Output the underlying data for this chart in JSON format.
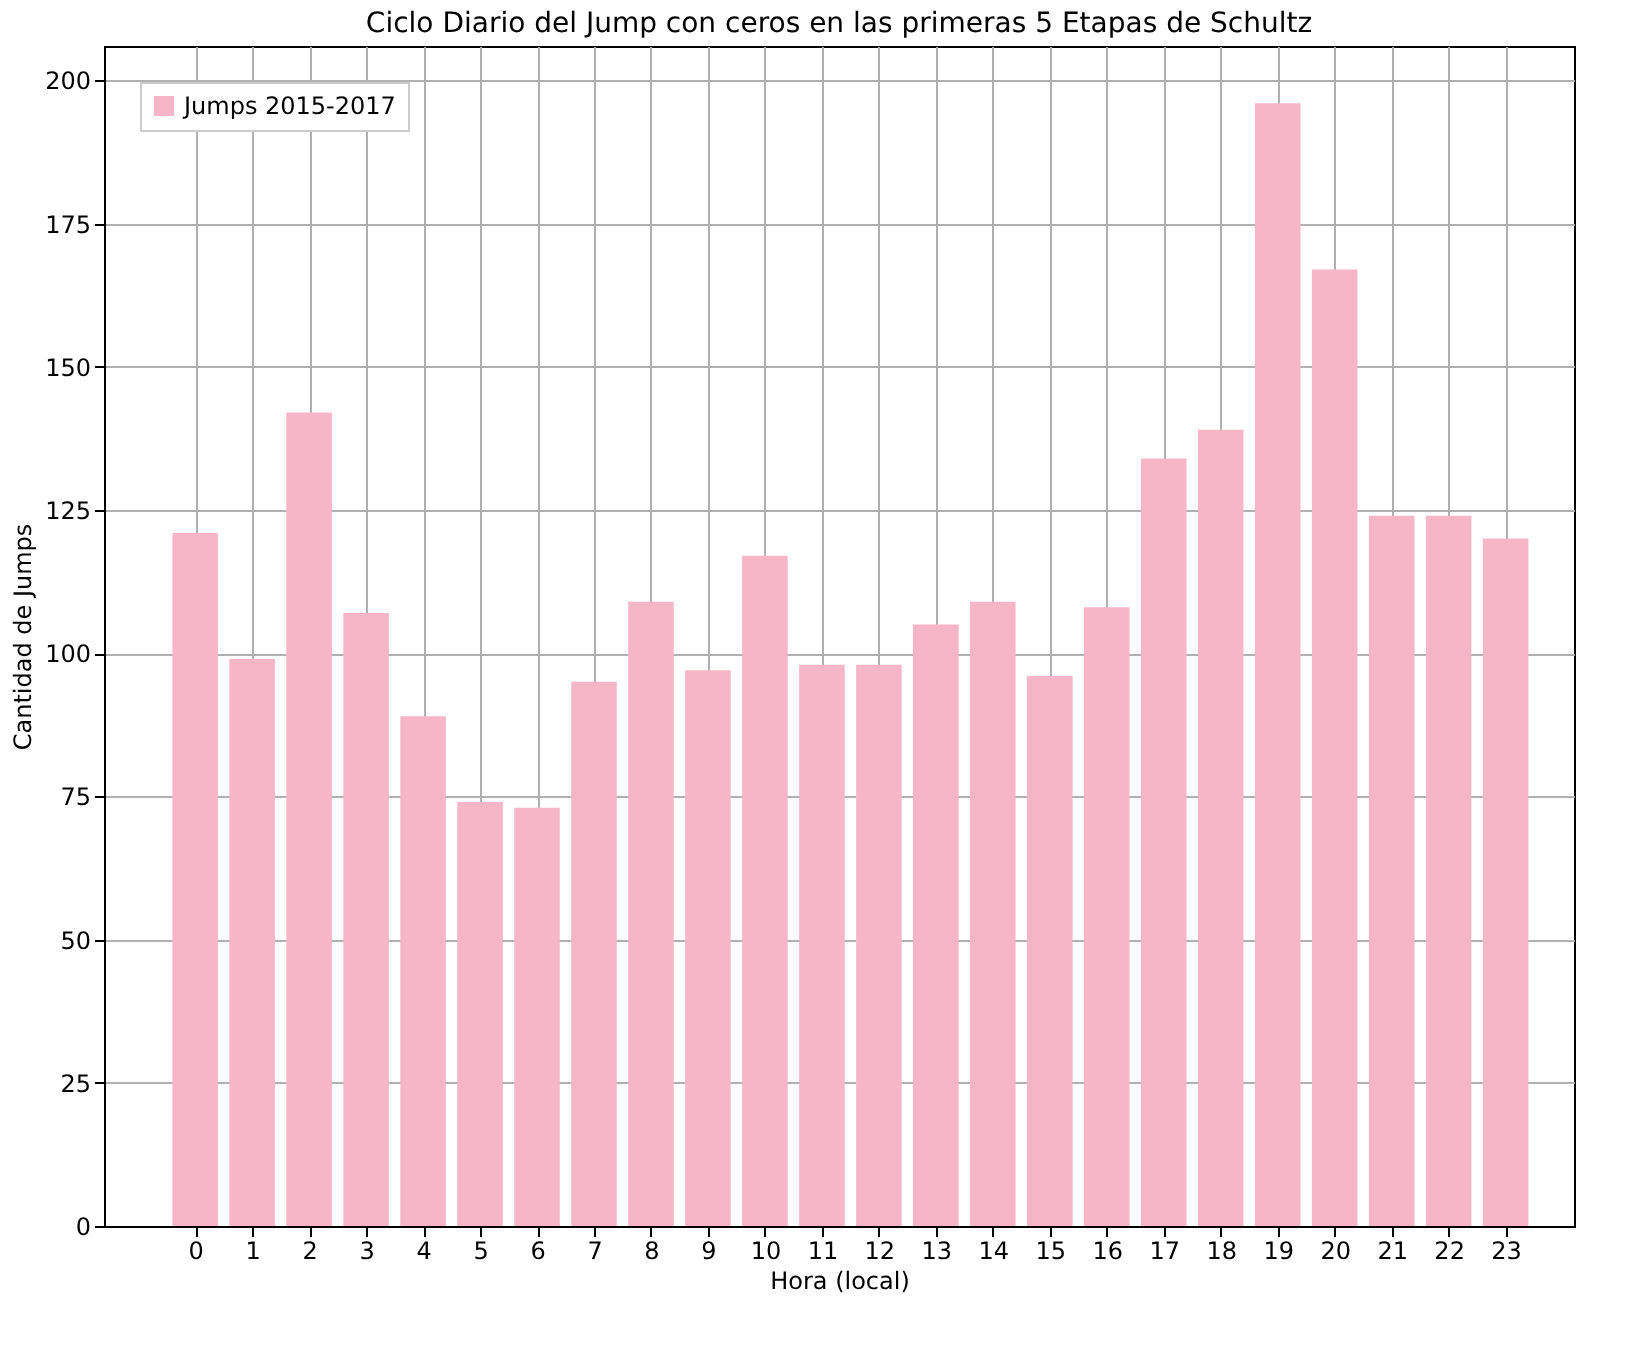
{
  "chart_data": {
    "type": "bar",
    "title": "Ciclo Diario del Jump con ceros en las primeras 5 Etapas de Schultz",
    "xlabel": "Hora (local)",
    "ylabel": "Cantidad de Jumps",
    "x": [
      0,
      1,
      2,
      3,
      4,
      5,
      6,
      7,
      8,
      9,
      10,
      11,
      12,
      13,
      14,
      15,
      16,
      17,
      18,
      19,
      20,
      21,
      22,
      23
    ],
    "series": [
      {
        "name": "Jumps 2015-2017",
        "color": "#f7b6c8",
        "values": [
          121,
          99,
          142,
          107,
          89,
          74,
          73,
          95,
          109,
          97,
          117,
          98,
          98,
          105,
          109,
          96,
          108,
          134,
          139,
          196,
          167,
          124,
          124,
          120
        ]
      }
    ],
    "xlim": [
      -1.6,
      24.2
    ],
    "xticks": [
      0,
      1,
      2,
      3,
      4,
      5,
      6,
      7,
      8,
      9,
      10,
      11,
      12,
      13,
      14,
      15,
      16,
      17,
      18,
      19,
      20,
      21,
      22,
      23
    ],
    "ylim": [
      0,
      206
    ],
    "yticks": [
      0,
      25,
      50,
      75,
      100,
      125,
      150,
      175,
      200
    ],
    "grid": true,
    "legend": "top left"
  }
}
